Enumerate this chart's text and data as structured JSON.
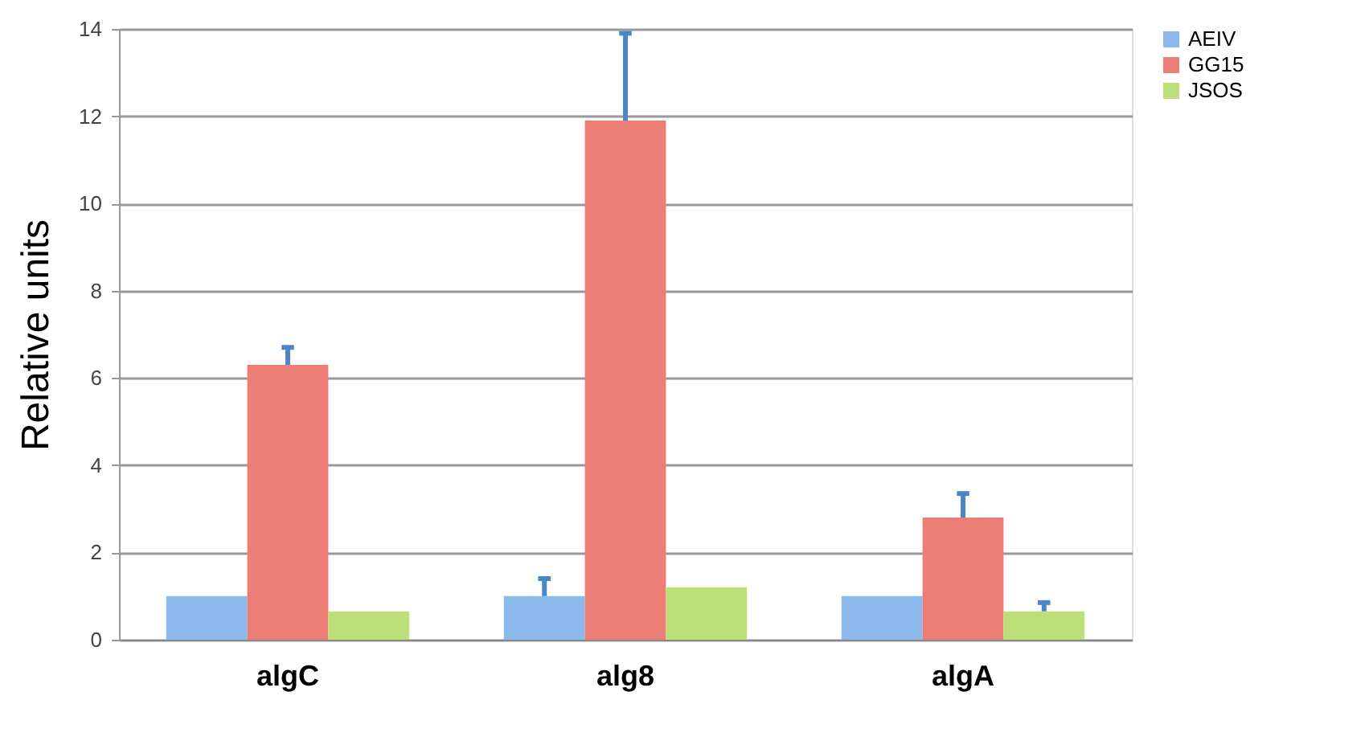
{
  "chart_data": {
    "type": "bar",
    "ylabel": "Relative units",
    "categories": [
      "algC",
      "alg8",
      "algA"
    ],
    "series": [
      {
        "name": "AEIV",
        "color": "#8bb9ec",
        "values": [
          1.0,
          1.0,
          1.0
        ],
        "errors": [
          null,
          [
            1.0,
            1.4
          ],
          null
        ]
      },
      {
        "name": "GG15",
        "color": "#ec7d75",
        "values": [
          6.3,
          11.9,
          2.8
        ],
        "errors": [
          [
            6.3,
            6.7
          ],
          [
            11.9,
            13.9
          ],
          [
            2.8,
            3.35
          ]
        ]
      },
      {
        "name": "JSOS",
        "color": "#bddf7a",
        "values": [
          0.65,
          1.2,
          0.65
        ],
        "errors": [
          null,
          null,
          [
            0.65,
            0.85
          ]
        ]
      }
    ],
    "ylim": [
      0,
      14
    ],
    "yticks": [
      0,
      2,
      4,
      6,
      8,
      10,
      12,
      14
    ],
    "grid": "y",
    "legend": "right"
  }
}
